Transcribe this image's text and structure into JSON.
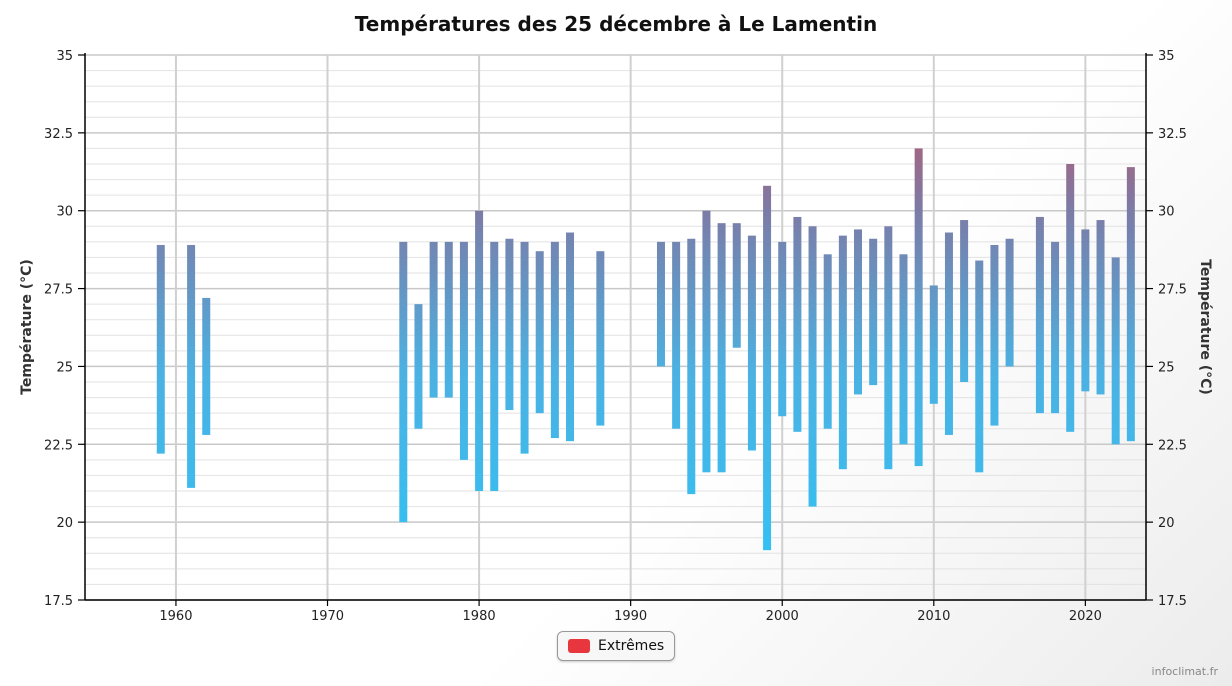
{
  "credit": "infoclimat.fr",
  "chart_data": {
    "type": "bar",
    "subtype": "floating-range",
    "title": "Températures des 25 décembre à Le Lamentin",
    "xlabel": "",
    "ylabel": "Température (°C)",
    "ylabel_right": "Température (°C)",
    "xlim": [
      1954,
      2024
    ],
    "ylim": [
      17.5,
      35
    ],
    "x_ticks": [
      1960,
      1970,
      1980,
      1990,
      2000,
      2010,
      2020
    ],
    "y_ticks": [
      17.5,
      20,
      22.5,
      25,
      27.5,
      30,
      32.5,
      35
    ],
    "y_tick_labels": [
      "17.5",
      "20",
      "22.5",
      "25",
      "27.5",
      "30",
      "32.5",
      "35"
    ],
    "grid": true,
    "legend": {
      "position": "bottom-center",
      "label": "Extrêmes",
      "color": "#e8363f"
    },
    "colors": {
      "low": "#2ec4f7",
      "high": "#7d7aa5",
      "extreme": "#c8505c"
    },
    "series": [
      {
        "name": "Extrêmes",
        "x": [
          1959,
          1961,
          1962,
          1975,
          1976,
          1977,
          1978,
          1979,
          1980,
          1981,
          1982,
          1983,
          1984,
          1985,
          1986,
          1988,
          1992,
          1993,
          1994,
          1995,
          1996,
          1997,
          1998,
          1999,
          2000,
          2001,
          2002,
          2003,
          2004,
          2005,
          2006,
          2007,
          2008,
          2009,
          2010,
          2011,
          2012,
          2013,
          2014,
          2015,
          2017,
          2018,
          2019,
          2020,
          2021,
          2022,
          2023
        ],
        "min": [
          22.2,
          21.1,
          22.8,
          20.0,
          23.0,
          24.0,
          24.0,
          22.0,
          21.0,
          21.0,
          23.6,
          22.2,
          23.5,
          22.7,
          22.6,
          23.1,
          25.0,
          23.0,
          20.9,
          21.6,
          21.6,
          25.6,
          22.3,
          19.1,
          23.4,
          22.9,
          20.5,
          23.0,
          21.7,
          24.1,
          24.4,
          21.7,
          22.5,
          21.8,
          23.8,
          22.8,
          24.5,
          21.6,
          23.1,
          25.0,
          23.5,
          23.5,
          22.9,
          24.2,
          24.1,
          22.5,
          22.6
        ],
        "max": [
          28.9,
          28.9,
          27.2,
          29.0,
          27.0,
          29.0,
          29.0,
          29.0,
          30.0,
          29.0,
          29.1,
          29.0,
          28.7,
          29.0,
          29.3,
          28.7,
          29.0,
          29.0,
          29.1,
          30.0,
          29.6,
          29.6,
          29.2,
          30.8,
          29.0,
          29.8,
          29.5,
          28.6,
          29.2,
          29.4,
          29.1,
          29.5,
          28.6,
          32.0,
          27.6,
          29.3,
          29.7,
          28.4,
          28.9,
          29.1,
          29.8,
          29.0,
          31.5,
          29.4,
          29.7,
          28.5,
          31.4
        ]
      }
    ]
  }
}
